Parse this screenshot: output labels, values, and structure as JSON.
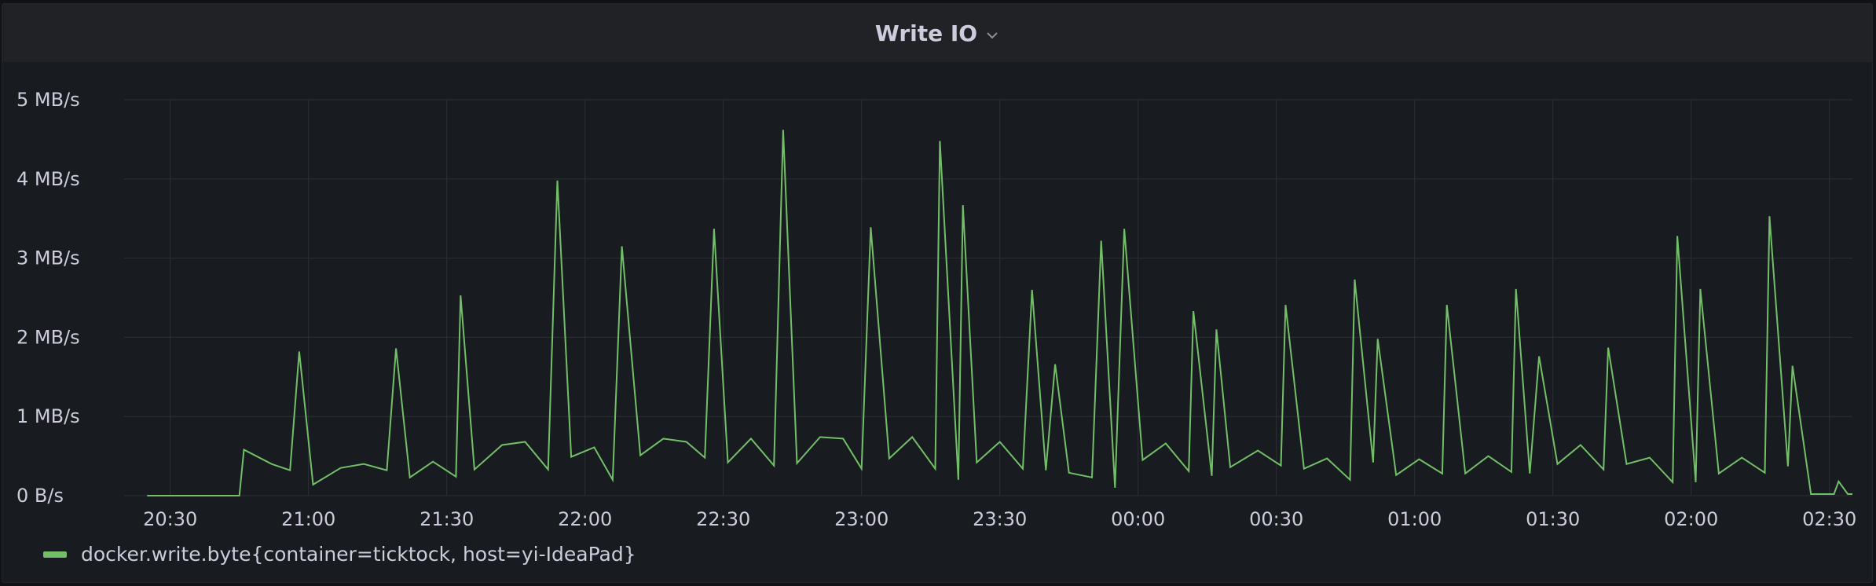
{
  "panel": {
    "title": "Write IO"
  },
  "colors": {
    "series": "#73bf69",
    "background": "#181b1f",
    "grid": "#2c2f34",
    "text": "#ccccdc"
  },
  "icons": {
    "title_menu": "chevron-down-icon"
  },
  "chart_data": {
    "type": "line",
    "title": "Write IO",
    "xlabel": "",
    "ylabel": "",
    "x_ticks": [
      "20:30",
      "21:00",
      "21:30",
      "22:00",
      "22:30",
      "23:00",
      "23:30",
      "00:00",
      "00:30",
      "01:00",
      "01:30",
      "02:00",
      "02:30"
    ],
    "x_range": [
      "20:20",
      "02:35"
    ],
    "y_ticks": [
      "0 B/s",
      "1 MB/s",
      "2 MB/s",
      "3 MB/s",
      "4 MB/s",
      "5 MB/s"
    ],
    "ylim": [
      0,
      5
    ],
    "y_unit": "MB/s",
    "grid": true,
    "legend_position": "bottom-left",
    "series": [
      {
        "name": "docker.write.byte{container=ticktock, host=yi-IdeaPad}",
        "color": "#73bf69",
        "points": [
          [
            "20:25",
            0
          ],
          [
            "20:30",
            0
          ],
          [
            "20:40",
            0
          ],
          [
            "20:45",
            0
          ],
          [
            "20:46",
            0.58
          ],
          [
            "20:52",
            0.4
          ],
          [
            "20:56",
            0.32
          ],
          [
            "20:58",
            1.82
          ],
          [
            "21:01",
            0.14
          ],
          [
            "21:07",
            0.35
          ],
          [
            "21:12",
            0.4
          ],
          [
            "21:17",
            0.32
          ],
          [
            "21:19",
            1.86
          ],
          [
            "21:22",
            0.23
          ],
          [
            "21:27",
            0.43
          ],
          [
            "21:32",
            0.24
          ],
          [
            "21:33",
            2.53
          ],
          [
            "21:36",
            0.33
          ],
          [
            "21:42",
            0.64
          ],
          [
            "21:47",
            0.68
          ],
          [
            "21:52",
            0.33
          ],
          [
            "21:54",
            3.98
          ],
          [
            "21:57",
            0.49
          ],
          [
            "22:02",
            0.61
          ],
          [
            "22:06",
            0.2
          ],
          [
            "22:08",
            3.15
          ],
          [
            "22:12",
            0.51
          ],
          [
            "22:17",
            0.72
          ],
          [
            "22:22",
            0.68
          ],
          [
            "22:26",
            0.48
          ],
          [
            "22:28",
            3.37
          ],
          [
            "22:31",
            0.42
          ],
          [
            "22:36",
            0.72
          ],
          [
            "22:41",
            0.38
          ],
          [
            "22:43",
            4.62
          ],
          [
            "22:46",
            0.41
          ],
          [
            "22:51",
            0.74
          ],
          [
            "22:56",
            0.72
          ],
          [
            "23:00",
            0.34
          ],
          [
            "23:02",
            3.39
          ],
          [
            "23:06",
            0.47
          ],
          [
            "23:11",
            0.74
          ],
          [
            "23:16",
            0.34
          ],
          [
            "23:17",
            4.48
          ],
          [
            "23:21",
            0.2
          ],
          [
            "23:22",
            3.67
          ],
          [
            "23:25",
            0.42
          ],
          [
            "23:30",
            0.68
          ],
          [
            "23:35",
            0.34
          ],
          [
            "23:37",
            2.6
          ],
          [
            "23:40",
            0.32
          ],
          [
            "23:42",
            1.66
          ],
          [
            "23:45",
            0.29
          ],
          [
            "23:50",
            0.23
          ],
          [
            "23:52",
            3.22
          ],
          [
            "23:55",
            0.1
          ],
          [
            "23:57",
            3.37
          ],
          [
            "00:01",
            0.45
          ],
          [
            "00:06",
            0.66
          ],
          [
            "00:11",
            0.31
          ],
          [
            "00:12",
            2.33
          ],
          [
            "00:16",
            0.25
          ],
          [
            "00:17",
            2.1
          ],
          [
            "00:20",
            0.36
          ],
          [
            "00:26",
            0.57
          ],
          [
            "00:31",
            0.38
          ],
          [
            "00:32",
            2.41
          ],
          [
            "00:36",
            0.34
          ],
          [
            "00:41",
            0.47
          ],
          [
            "00:46",
            0.2
          ],
          [
            "00:47",
            2.73
          ],
          [
            "00:51",
            0.42
          ],
          [
            "00:52",
            1.98
          ],
          [
            "00:56",
            0.26
          ],
          [
            "01:01",
            0.46
          ],
          [
            "01:06",
            0.28
          ],
          [
            "01:07",
            2.41
          ],
          [
            "01:11",
            0.28
          ],
          [
            "01:16",
            0.5
          ],
          [
            "01:21",
            0.3
          ],
          [
            "01:22",
            2.61
          ],
          [
            "01:25",
            0.28
          ],
          [
            "01:27",
            1.76
          ],
          [
            "01:31",
            0.4
          ],
          [
            "01:36",
            0.64
          ],
          [
            "01:41",
            0.33
          ],
          [
            "01:42",
            1.87
          ],
          [
            "01:46",
            0.4
          ],
          [
            "01:51",
            0.48
          ],
          [
            "01:56",
            0.17
          ],
          [
            "01:57",
            3.28
          ],
          [
            "02:01",
            0.17
          ],
          [
            "02:02",
            2.61
          ],
          [
            "02:06",
            0.28
          ],
          [
            "02:11",
            0.48
          ],
          [
            "02:16",
            0.29
          ],
          [
            "02:17",
            3.53
          ],
          [
            "02:21",
            0.37
          ],
          [
            "02:22",
            1.64
          ],
          [
            "02:26",
            0.02
          ],
          [
            "02:31",
            0.02
          ],
          [
            "02:32",
            0.18
          ],
          [
            "02:34",
            0.02
          ],
          [
            "02:35",
            0.02
          ]
        ]
      }
    ]
  }
}
